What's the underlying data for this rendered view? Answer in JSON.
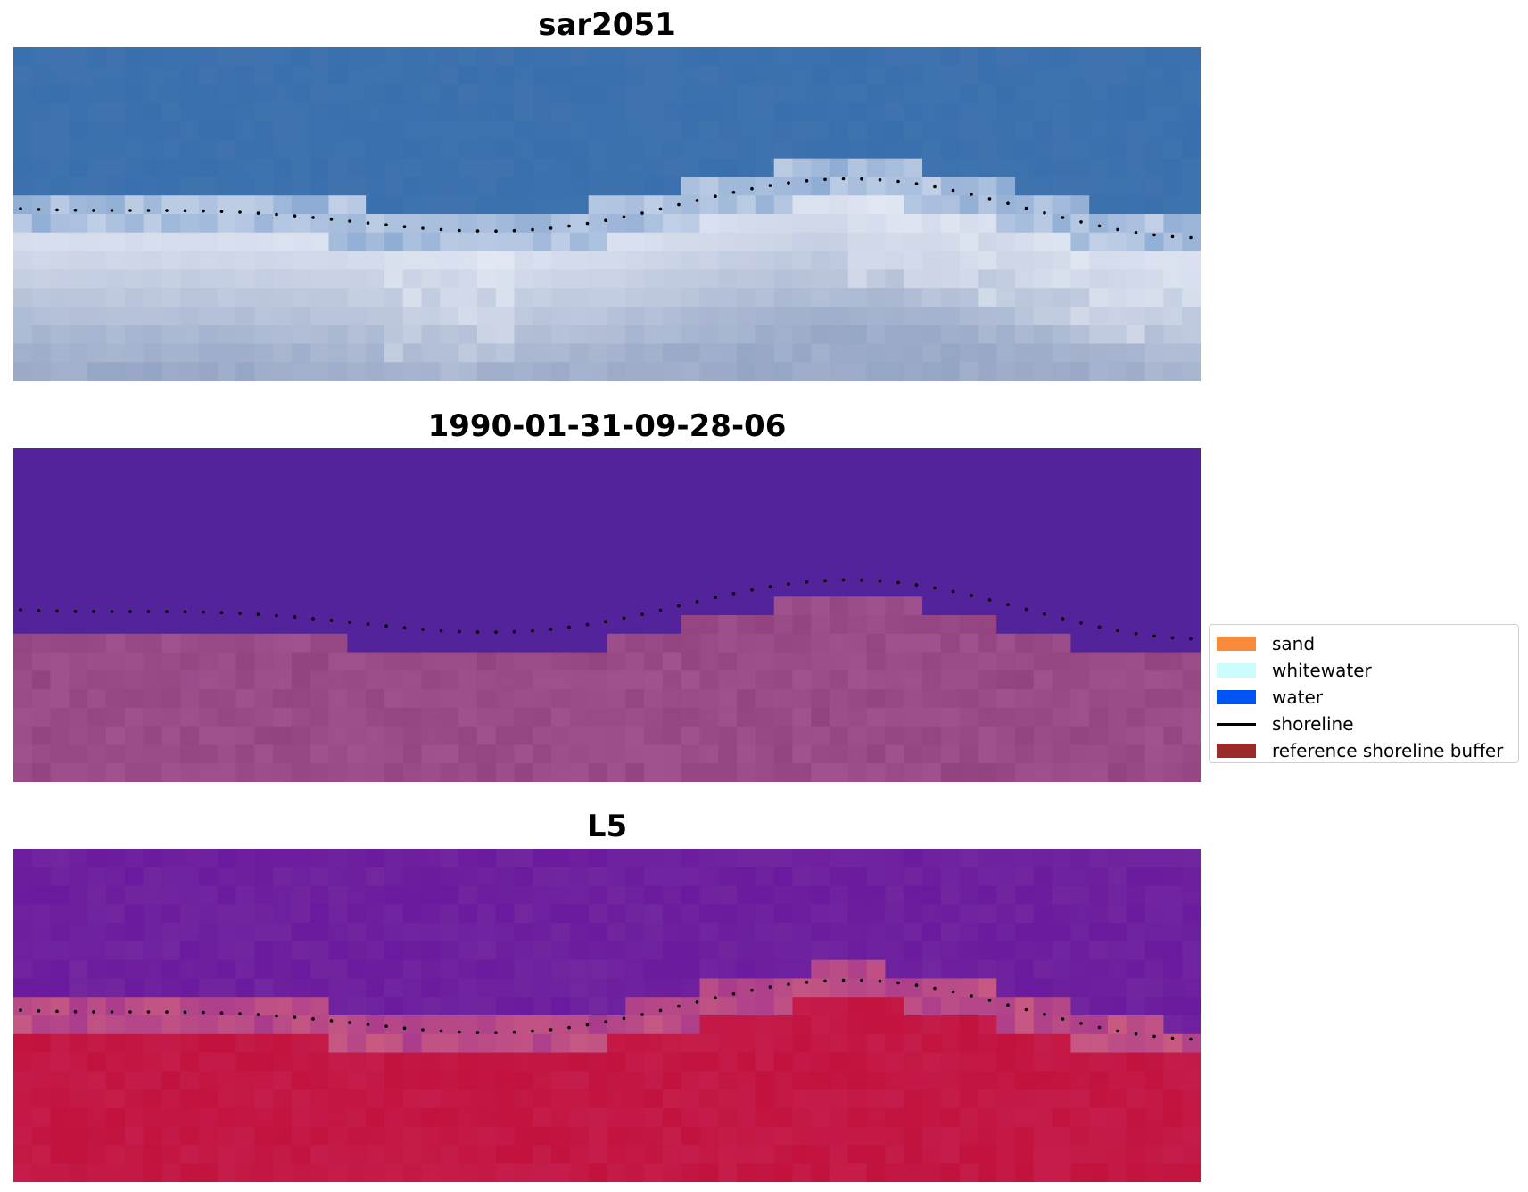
{
  "panels": [
    {
      "title": "sar2051",
      "scheme": "rgb"
    },
    {
      "title": "1990-01-31-09-28-06",
      "scheme": "classified"
    },
    {
      "title": "L5",
      "scheme": "ndwi"
    }
  ],
  "legend": {
    "items": [
      {
        "label": "sand",
        "color": "#f98c3c",
        "kind": "patch"
      },
      {
        "label": "whitewater",
        "color": "#ccfcfc",
        "kind": "patch"
      },
      {
        "label": "water",
        "color": "#0054f5",
        "kind": "patch"
      },
      {
        "label": "shoreline",
        "color": "#000000",
        "kind": "line"
      },
      {
        "label": "reference shoreline buffer",
        "color": "#9b2b2b",
        "kind": "patch"
      }
    ]
  },
  "colors": {
    "classified_water": "#52239a",
    "classified_land": "#a0528f",
    "rgb_water": "#3a6fae",
    "rgb_surf": "#d9e0ef",
    "ndwi_water": "#6a1a9e",
    "ndwi_land": "#c2123d",
    "shoreline_dots": "#000000"
  }
}
